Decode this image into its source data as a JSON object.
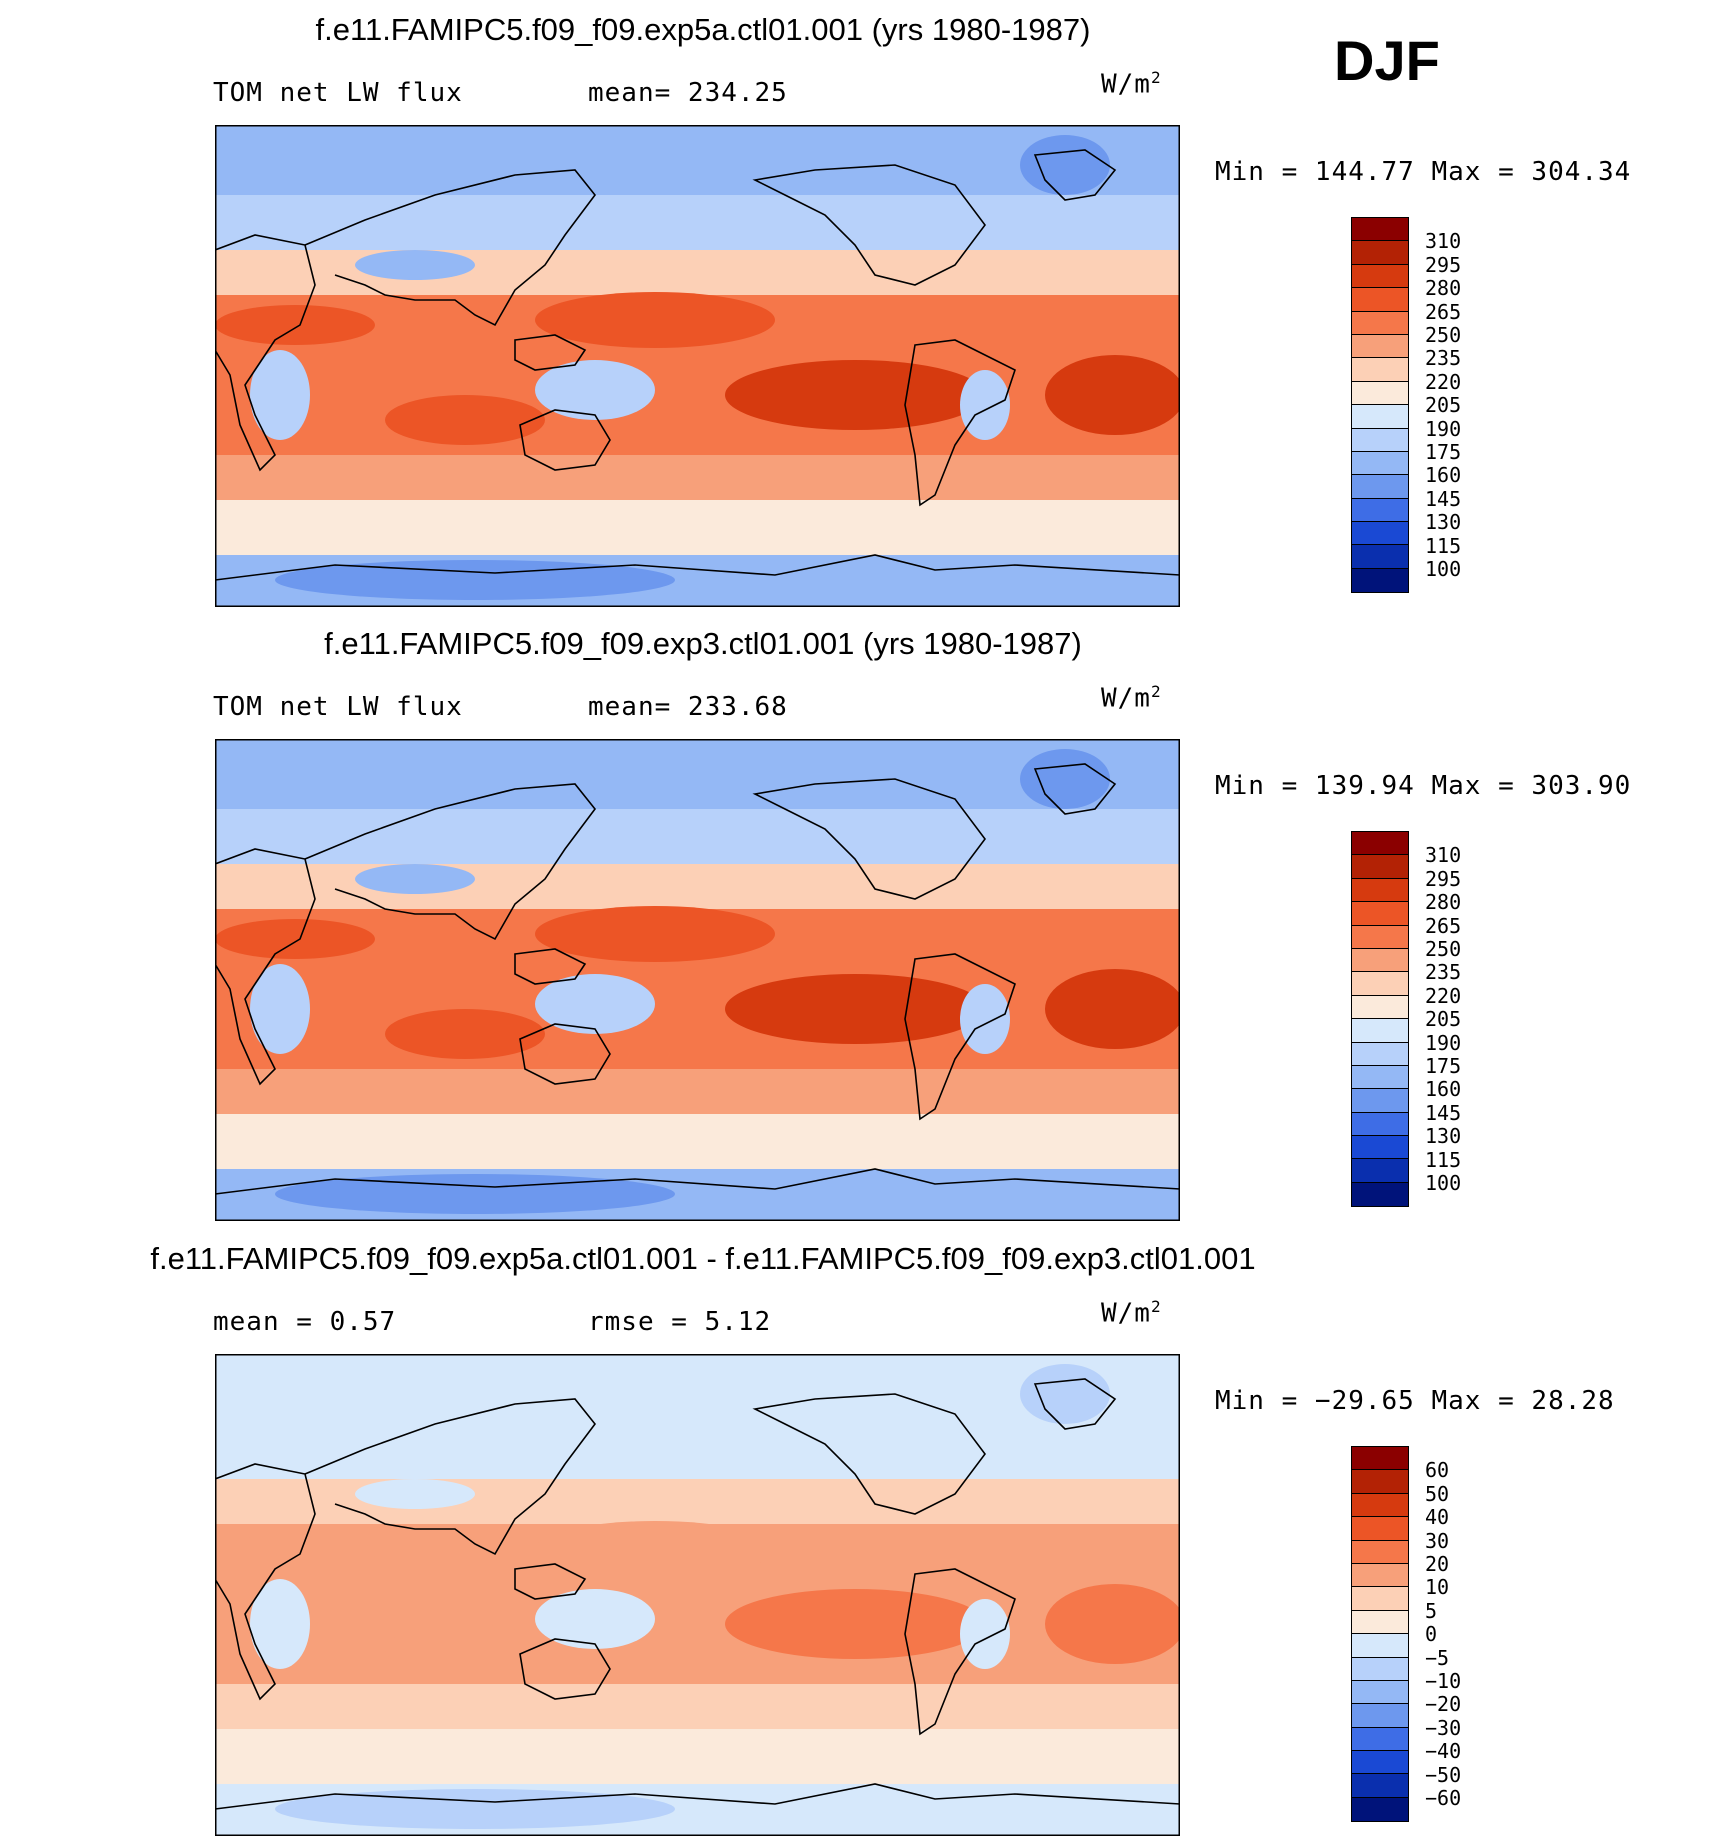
{
  "season": "DJF",
  "units_base": "W/m",
  "units_sup": "2",
  "panels": [
    {
      "title": "f.e11.FAMIPC5.f09_f09.exp5a.ctl01.001 (yrs 1980-1987)",
      "left_label": "TOM net LW flux",
      "stat_label": "mean= 234.25",
      "minmax": "Min = 144.77 Max = 304.34",
      "levels": [
        "310",
        "295",
        "280",
        "265",
        "250",
        "235",
        "220",
        "205",
        "190",
        "175",
        "160",
        "145",
        "130",
        "115",
        "100"
      ],
      "colors": [
        "#8b0000",
        "#b32205",
        "#d63a0f",
        "#ec5526",
        "#f5774a",
        "#f7a07a",
        "#fcd0b6",
        "#fbeadb",
        "#d6e8fb",
        "#b7d1fa",
        "#94b8f5",
        "#6d98ee",
        "#3e6de6",
        "#1a49d4",
        "#0a2fae",
        "#00137a"
      ],
      "map_palette": {
        "cold1": "#6d98ee",
        "cold2": "#94b8f5",
        "cold3": "#b7d1fa",
        "neutral": "#fbeadb",
        "warm1": "#fcd0b6",
        "warm2": "#f7a07a",
        "warm3": "#f5774a",
        "warm4": "#ec5526",
        "warm5": "#d63a0f"
      }
    },
    {
      "title": "f.e11.FAMIPC5.f09_f09.exp3.ctl01.001 (yrs 1980-1987)",
      "left_label": "TOM net LW flux",
      "stat_label": "mean= 233.68",
      "minmax": "Min = 139.94 Max = 303.90",
      "levels": [
        "310",
        "295",
        "280",
        "265",
        "250",
        "235",
        "220",
        "205",
        "190",
        "175",
        "160",
        "145",
        "130",
        "115",
        "100"
      ],
      "colors": [
        "#8b0000",
        "#b32205",
        "#d63a0f",
        "#ec5526",
        "#f5774a",
        "#f7a07a",
        "#fcd0b6",
        "#fbeadb",
        "#d6e8fb",
        "#b7d1fa",
        "#94b8f5",
        "#6d98ee",
        "#3e6de6",
        "#1a49d4",
        "#0a2fae",
        "#00137a"
      ],
      "map_palette": {
        "cold1": "#6d98ee",
        "cold2": "#94b8f5",
        "cold3": "#b7d1fa",
        "neutral": "#fbeadb",
        "warm1": "#fcd0b6",
        "warm2": "#f7a07a",
        "warm3": "#f5774a",
        "warm4": "#ec5526",
        "warm5": "#d63a0f"
      }
    },
    {
      "title": "f.e11.FAMIPC5.f09_f09.exp5a.ctl01.001 - f.e11.FAMIPC5.f09_f09.exp3.ctl01.001",
      "left_label": "mean =    0.57",
      "stat_label": "rmse =    5.12",
      "minmax": "Min = −29.65 Max =  28.28",
      "levels": [
        "60",
        "50",
        "40",
        "30",
        "20",
        "10",
        "5",
        "0",
        "−5",
        "−10",
        "−20",
        "−30",
        "−40",
        "−50",
        "−60"
      ],
      "colors": [
        "#8b0000",
        "#b32205",
        "#d63a0f",
        "#ec5526",
        "#f5774a",
        "#f7a07a",
        "#fcd0b6",
        "#fbeadb",
        "#d6e8fb",
        "#b7d1fa",
        "#94b8f5",
        "#6d98ee",
        "#3e6de6",
        "#1a49d4",
        "#0a2fae",
        "#00137a"
      ],
      "map_palette": {
        "cold1": "#b7d1fa",
        "cold2": "#d6e8fb",
        "cold3": "#d6e8fb",
        "neutral": "#fbeadb",
        "warm1": "#fcd0b6",
        "warm2": "#fcd0b6",
        "warm3": "#f7a07a",
        "warm4": "#f7a07a",
        "warm5": "#f5774a"
      }
    }
  ]
}
